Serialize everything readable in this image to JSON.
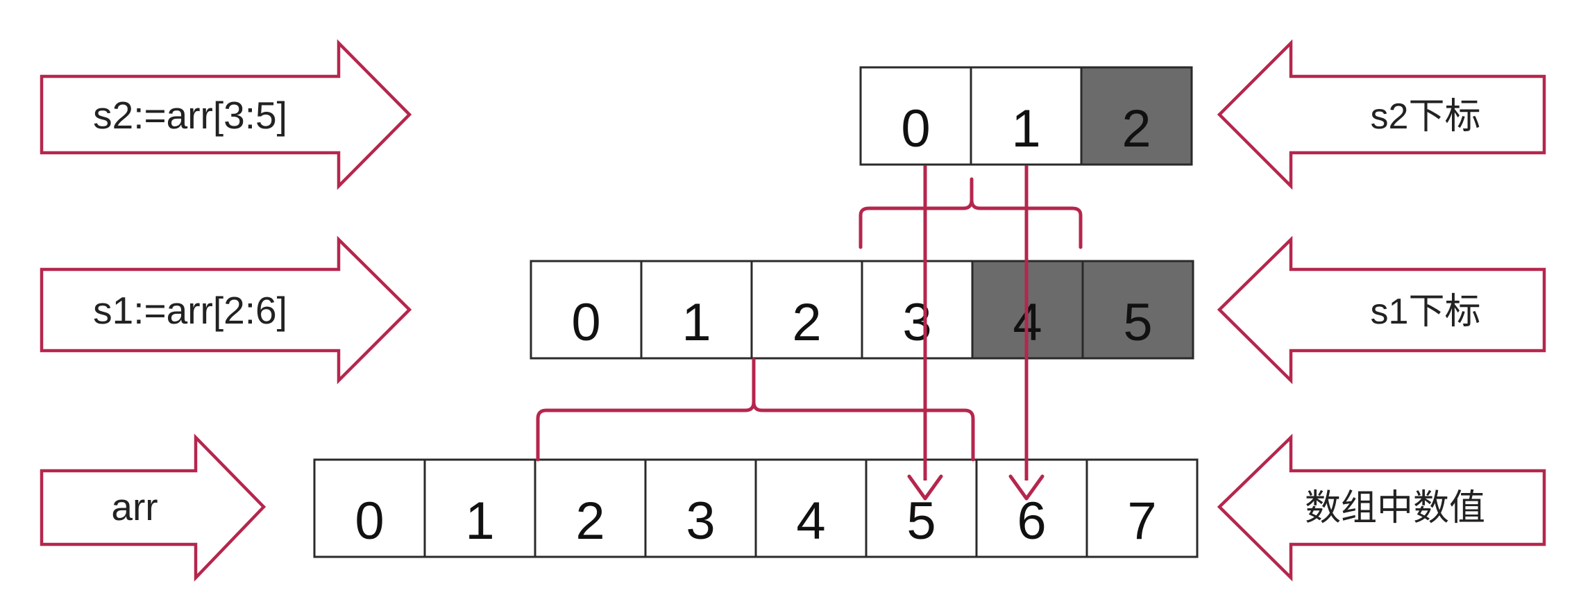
{
  "colors": {
    "outline": "#b5264d",
    "connector": "#b5264d",
    "cell_border": "#2a2a2a",
    "cell_fill": "#ffffff",
    "cell_shaded": "#6b6b6b",
    "text": "#111111"
  },
  "left_arrows": [
    {
      "text": "s2:=arr[3:5]"
    },
    {
      "text": "s1:=arr[2:6]"
    },
    {
      "text": "arr"
    }
  ],
  "right_arrows": [
    {
      "text": "s2下标"
    },
    {
      "text": "s1下标"
    },
    {
      "text": "数组中数值"
    }
  ],
  "rows": {
    "s2": {
      "cells": [
        "0",
        "1",
        "2"
      ],
      "shaded": [
        false,
        false,
        true
      ]
    },
    "s1": {
      "cells": [
        "0",
        "1",
        "2",
        "3",
        "4",
        "5"
      ],
      "shaded": [
        false,
        false,
        false,
        false,
        true,
        true
      ]
    },
    "arr": {
      "cells": [
        "0",
        "1",
        "2",
        "3",
        "4",
        "5",
        "6",
        "7"
      ],
      "shaded": [
        false,
        false,
        false,
        false,
        false,
        false,
        false,
        false
      ]
    }
  }
}
